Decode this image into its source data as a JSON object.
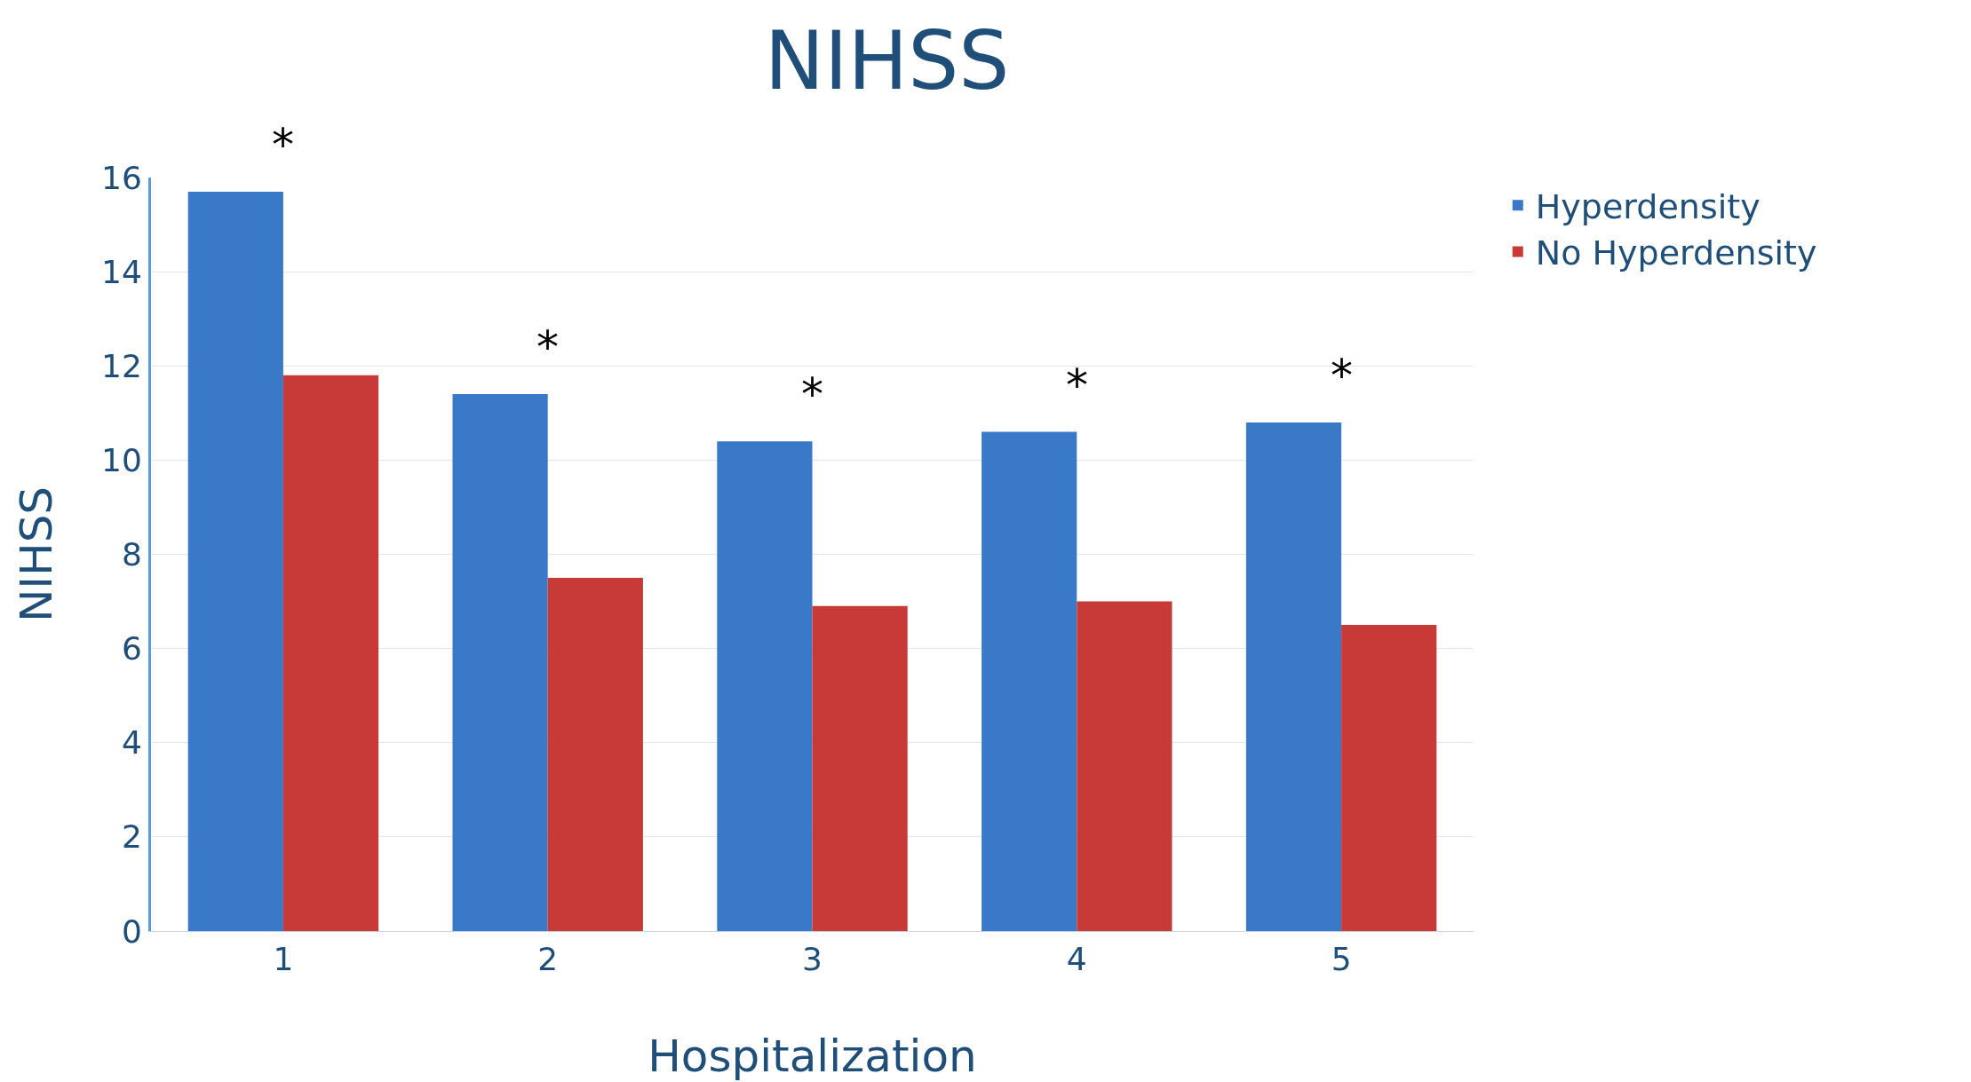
{
  "chart_data": {
    "type": "bar",
    "title": "NIHSS",
    "xlabel": "Hospitalization",
    "ylabel": "NIHSS",
    "categories": [
      "1",
      "2",
      "3",
      "4",
      "5"
    ],
    "series": [
      {
        "name": "Hyperdensity",
        "color": "#3a78c8",
        "values": [
          15.7,
          11.4,
          10.4,
          10.6,
          10.8
        ]
      },
      {
        "name": "No Hyperdensity",
        "color": "#c83a38",
        "values": [
          11.8,
          7.5,
          6.9,
          7.0,
          6.5
        ]
      }
    ],
    "ylim": [
      0,
      16
    ],
    "yticks": [
      0,
      2,
      4,
      6,
      8,
      10,
      12,
      14,
      16
    ],
    "grid": "y",
    "legend": "top right",
    "annotations": [
      "*",
      "*",
      "*",
      "*",
      "*"
    ]
  }
}
